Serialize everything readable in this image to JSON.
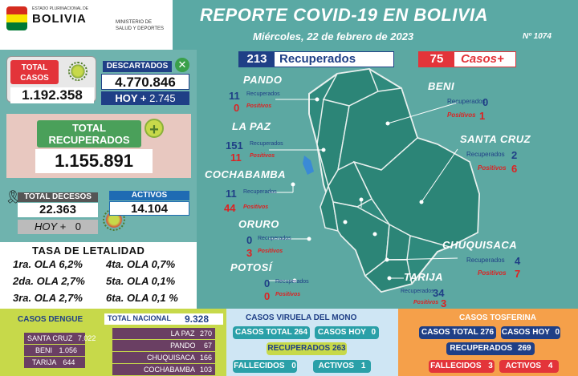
{
  "header": {
    "estado": "ESTADO PLURINACIONAL DE",
    "country": "BOLIVIA",
    "ministry": "MINISTERIO DE SALUD Y DEPORTES",
    "title": "REPORTE COVID-19 EN BOLIVIA",
    "date": "Miércoles, 22 de febrero de 2023",
    "report_no": "Nº 1074"
  },
  "summary": {
    "total_casos_label": "TOTAL CASOS",
    "total_casos": "1.192.358",
    "descartados_label": "DESCARTADOS",
    "descartados": "4.770.846",
    "hoy_label": "HOY +",
    "descartados_hoy": "2.745",
    "total_rec_label": "TOTAL RECUPERADOS",
    "total_rec": "1.155.891",
    "decesos_label": "TOTAL DECESOS",
    "decesos": "22.363",
    "decesos_hoy_label": "HOY +",
    "decesos_hoy": "0",
    "activos_label": "ACTIVOS",
    "activos": "14.104"
  },
  "letalidad": {
    "title": "TASA DE LETALIDAD",
    "items": [
      "1ra. OLA 6,2%",
      "4ta. OLA 0,7%",
      "2da. OLA 2,7%",
      "5ta. OLA 0,1%",
      "3ra. OLA 2,7%",
      "6ta. OLA 0,1 %"
    ]
  },
  "daily": {
    "recuperados": "213",
    "recuperados_label": "Recuperados",
    "casos": "75",
    "casos_label": "Casos+"
  },
  "labels": {
    "rec": "Recuperados",
    "pos": "Positivos"
  },
  "departments": {
    "pando": {
      "name": "PANDO",
      "rec": "11",
      "pos": "0"
    },
    "lapaz": {
      "name": "LA PAZ",
      "rec": "151",
      "pos": "11"
    },
    "cochabamba": {
      "name": "COCHABAMBA",
      "rec": "11",
      "pos": "44"
    },
    "oruro": {
      "name": "ORURO",
      "rec": "0",
      "pos": "3"
    },
    "potosi": {
      "name": "POTOSÍ",
      "rec": "0",
      "pos": "0"
    },
    "beni": {
      "name": "BENI",
      "rec": "0",
      "pos": "1"
    },
    "santacruz": {
      "name": "SANTA CRUZ",
      "rec": "2",
      "pos": "6"
    },
    "chuquisaca": {
      "name": "CHUQUISACA",
      "rec": "4",
      "pos": "7"
    },
    "tarija": {
      "name": "TARIJA",
      "rec": "34",
      "pos": "3"
    }
  },
  "dengue": {
    "title": "CASOS DENGUE",
    "total_label": "TOTAL NACIONAL",
    "total": "9.328",
    "left": [
      {
        "name": "SANTA CRUZ",
        "value": "7.022"
      },
      {
        "name": "BENI",
        "value": "1.056"
      },
      {
        "name": "TARIJA",
        "value": "644"
      }
    ],
    "right": [
      {
        "name": "LA PAZ",
        "value": "270"
      },
      {
        "name": "PANDO",
        "value": "67"
      },
      {
        "name": "CHUQUISACA",
        "value": "166"
      },
      {
        "name": "COCHABAMBA",
        "value": "103"
      }
    ]
  },
  "viruela": {
    "title": "CASOS VIRUELA DEL MONO",
    "total_label": "CASOS TOTAL",
    "total": "264",
    "hoy_label": "CASOS HOY",
    "hoy": "0",
    "rec_label": "RECUPERADOS",
    "rec": "263",
    "fall_label": "FALLECIDOS",
    "fall": "0",
    "act_label": "ACTIVOS",
    "act": "1"
  },
  "tosferina": {
    "title": "CASOS TOSFERINA",
    "total_label": "CASOS TOTAL",
    "total": "276",
    "hoy_label": "CASOS HOY",
    "hoy": "0",
    "rec_label": "RECUPERADOS",
    "rec": "269",
    "fall_label": "FALLECIDOS",
    "fall": "3",
    "act_label": "ACTIVOS",
    "act": "4"
  }
}
